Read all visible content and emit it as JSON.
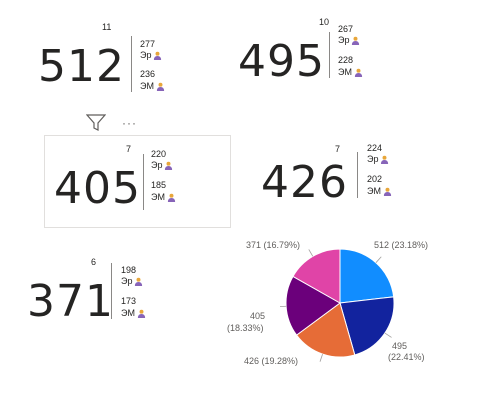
{
  "cards": [
    {
      "rank": "11",
      "value": "512",
      "er_value": "277",
      "er_label": "Эр",
      "em_value": "236",
      "em_label": "ЭМ"
    },
    {
      "rank": "10",
      "value": "495",
      "er_value": "267",
      "er_label": "Эр",
      "em_value": "228",
      "em_label": "ЭМ"
    },
    {
      "rank": "7",
      "value": "405",
      "er_value": "220",
      "er_label": "Эр",
      "em_value": "185",
      "em_label": "ЭМ"
    },
    {
      "rank": "7",
      "value": "426",
      "er_value": "224",
      "er_label": "Эр",
      "em_value": "202",
      "em_label": "ЭМ"
    },
    {
      "rank": "6",
      "value": "371",
      "er_value": "198",
      "er_label": "Эр",
      "em_value": "173",
      "em_label": "ЭМ"
    }
  ],
  "visual_header": {
    "filter_icon": "filter-icon",
    "more_icon": "more-options-icon",
    "more_label": "···"
  },
  "chart_data": {
    "type": "pie",
    "slices": [
      {
        "value": 512,
        "label": "512 (23.18%)",
        "color": "#118DFF"
      },
      {
        "value": 495,
        "label": "495 (22.41%)",
        "color": "#12239E"
      },
      {
        "value": 426,
        "label": "426 (19.28%)",
        "color": "#E66C37"
      },
      {
        "value": 405,
        "label": "405 (18.33%)",
        "color": "#6B007B"
      },
      {
        "value": 371,
        "label": "371 (16.79%)",
        "color": "#E044A7"
      }
    ]
  },
  "pie_labels": {
    "s0": "512 (23.18%)",
    "s1_a": "495",
    "s1_b": "(22.41%)",
    "s2": "426 (19.28%)",
    "s3_a": "405",
    "s3_b": "(18.33%)",
    "s4": "371 (16.79%)"
  },
  "icon_color": "#8764B8"
}
